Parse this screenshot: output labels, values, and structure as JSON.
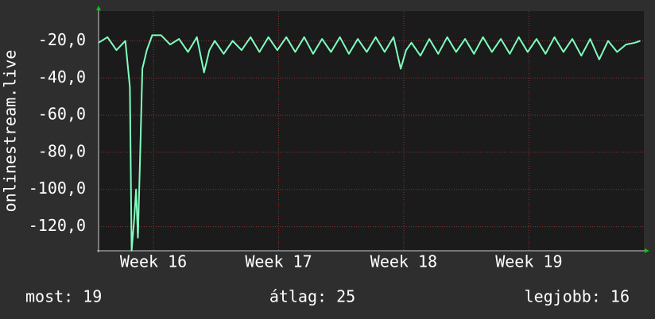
{
  "chart_data": {
    "type": "line",
    "y_label": "onlinestream.live",
    "series": [
      {
        "name": "onlinestream.live",
        "color": "#7fffbf",
        "x": [
          0,
          0.5,
          1.0,
          1.5,
          1.75,
          1.85,
          2.0,
          2.1,
          2.2,
          2.35,
          2.45,
          2.7,
          3.0,
          3.5,
          4.0,
          4.5,
          5.0,
          5.5,
          5.9,
          6.2,
          6.5,
          7.0,
          7.5,
          8.0,
          8.5,
          9.0,
          9.5,
          10.0,
          10.5,
          11.0,
          11.5,
          12.0,
          12.5,
          13.0,
          13.5,
          14.0,
          14.5,
          15.0,
          15.5,
          16.0,
          16.5,
          16.9,
          17.2,
          17.5,
          18.0,
          18.5,
          19.0,
          19.5,
          20.0,
          20.5,
          21.0,
          21.5,
          22.0,
          22.5,
          23.0,
          23.5,
          24.0,
          24.5,
          25.0,
          25.5,
          26.0,
          26.5,
          27.0,
          27.5,
          28.0,
          28.5,
          29.0,
          29.5,
          30.0,
          30.3
        ],
        "values": [
          -21,
          -18,
          -25,
          -20,
          -45,
          -133,
          -115,
          -100,
          -126,
          -72,
          -35,
          -25,
          -17,
          -17,
          -22,
          -19,
          -26,
          -18,
          -37,
          -25,
          -20,
          -27,
          -20,
          -25,
          -18,
          -26,
          -18,
          -25,
          -18,
          -26,
          -18,
          -27,
          -19,
          -26,
          -18,
          -27,
          -19,
          -26,
          -18,
          -26,
          -18,
          -35,
          -25,
          -21,
          -28,
          -19,
          -27,
          -18,
          -26,
          -19,
          -27,
          -18,
          -26,
          -19,
          -27,
          -18,
          -26,
          -19,
          -27,
          -18,
          -26,
          -19,
          -28,
          -19,
          -30,
          -20,
          -26,
          -22,
          -21,
          -20
        ]
      }
    ],
    "xlim": [
      0,
      30.5
    ],
    "xticks": [
      {
        "value": 3.07,
        "label": "Week 16"
      },
      {
        "value": 10.07,
        "label": "Week 17"
      },
      {
        "value": 17.07,
        "label": "Week 18"
      },
      {
        "value": 24.07,
        "label": "Week 19"
      }
    ],
    "ylim": [
      -133,
      -4
    ],
    "yticks": [
      {
        "value": -20,
        "label": "-20,0"
      },
      {
        "value": -40,
        "label": "-40,0"
      },
      {
        "value": -60,
        "label": "-60,0"
      },
      {
        "value": -80,
        "label": "-80,0"
      },
      {
        "value": -100,
        "label": "-100,0"
      },
      {
        "value": -120,
        "label": "-120,0"
      }
    ],
    "grid": true,
    "stats": [
      "most: 19",
      "átlag: 25",
      "legjobb: 16"
    ]
  }
}
